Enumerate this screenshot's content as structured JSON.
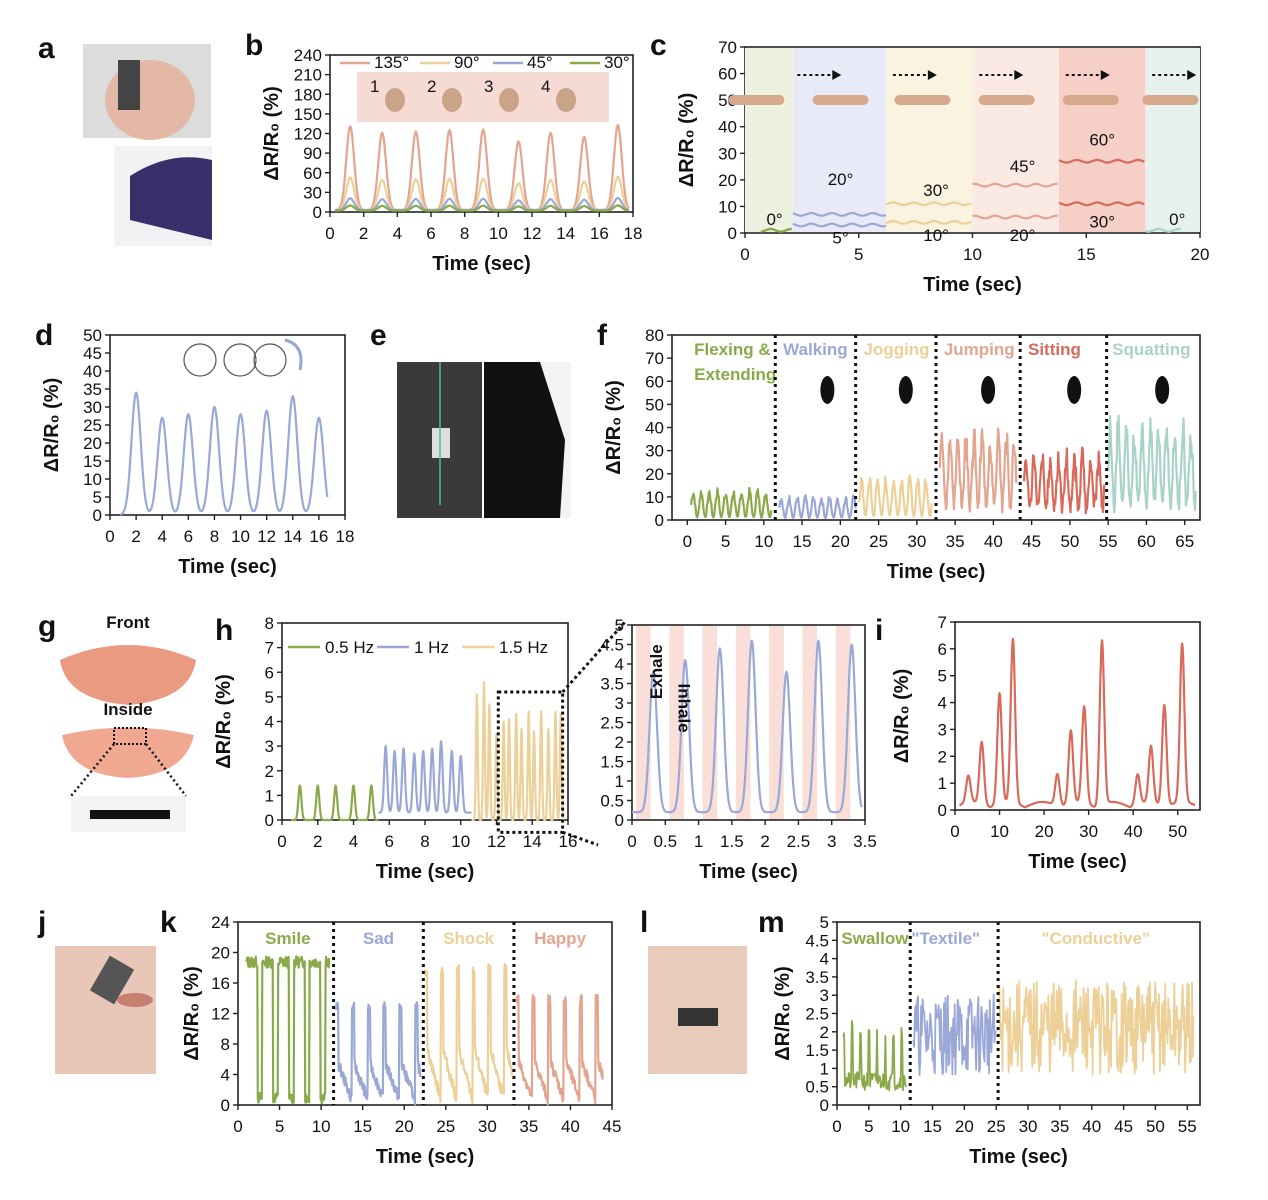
{
  "panels": {
    "a": "a",
    "b": "b",
    "c": "c",
    "d": "d",
    "e": "e",
    "f": "f",
    "g": "g",
    "h": "h",
    "i": "i",
    "j": "j",
    "k": "k",
    "l": "l",
    "m": "m"
  },
  "labels": {
    "ylabel": "ΔR/R₀ (%)",
    "xlabel": "Time (sec)",
    "front": "Front",
    "inside": "Inside"
  },
  "chart_data": [
    {
      "id": "b",
      "type": "line",
      "xlim": [
        0,
        18
      ],
      "ylim": [
        0,
        240
      ],
      "xticks": [
        "0",
        "2",
        "4",
        "6",
        "8",
        "10",
        "12",
        "14",
        "16",
        "18"
      ],
      "yticks": [
        "0",
        "30",
        "60",
        "90",
        "120",
        "150",
        "180",
        "210",
        "240"
      ],
      "series": [
        {
          "name": "135°",
          "color": "#e3a58f",
          "peak": 128
        },
        {
          "name": "90°",
          "color": "#ecd098",
          "peak": 50
        },
        {
          "name": "45°",
          "color": "#9aa8d8",
          "peak": 18
        },
        {
          "name": "30°",
          "color": "#8aaa4a",
          "peak": 8
        }
      ],
      "peaks_x": [
        1.2,
        3.1,
        5.1,
        7.1,
        9.1,
        11.2,
        13.1,
        15.1,
        17.1
      ],
      "peaks_y": [
        128,
        118,
        120,
        122,
        123,
        105,
        118,
        112,
        130
      ],
      "inset_labels": [
        "1",
        "2",
        "3",
        "4"
      ]
    },
    {
      "id": "c",
      "type": "line",
      "xlim": [
        0,
        20
      ],
      "ylim": [
        0,
        70
      ],
      "xticks": [
        "0",
        "5",
        "10",
        "15",
        "20"
      ],
      "yticks": [
        "0",
        "10",
        "20",
        "30",
        "40",
        "50",
        "60",
        "70"
      ],
      "segments": [
        {
          "x0": 0.7,
          "x1": 2.1,
          "upper": 1,
          "lower": 1
        },
        {
          "x0": 2.1,
          "x1": 6.2,
          "upper": 7,
          "lower": 3
        },
        {
          "x0": 6.2,
          "x1": 10,
          "upper": 11,
          "lower": 4
        },
        {
          "x0": 10,
          "x1": 13.8,
          "upper": 18,
          "lower": 6
        },
        {
          "x0": 13.8,
          "x1": 17.6,
          "upper": 27,
          "lower": 11
        },
        {
          "x0": 17.6,
          "x1": 19.2,
          "upper": 1,
          "lower": 1
        }
      ],
      "annotations": [
        "0°",
        "20°",
        "5°",
        "30°",
        "10°",
        "45°",
        "20°",
        "60°",
        "30°",
        "0°"
      ]
    },
    {
      "id": "d",
      "type": "line",
      "xlim": [
        0,
        18
      ],
      "ylim": [
        0,
        50
      ],
      "xticks": [
        "0",
        "2",
        "4",
        "6",
        "8",
        "10",
        "12",
        "14",
        "16",
        "18"
      ],
      "yticks": [
        "0",
        "5",
        "10",
        "15",
        "20",
        "25",
        "30",
        "35",
        "40",
        "45",
        "50"
      ],
      "peaks_x": [
        2,
        4,
        6,
        8,
        10,
        12,
        14,
        16
      ],
      "peaks_y": [
        34,
        27,
        28,
        30,
        28,
        29,
        33,
        27
      ]
    },
    {
      "id": "f",
      "type": "line",
      "xlim": [
        -2,
        67
      ],
      "ylim": [
        0,
        80
      ],
      "xticks": [
        "0",
        "5",
        "10",
        "15",
        "20",
        "25",
        "30",
        "35",
        "40",
        "45",
        "50",
        "55",
        "60",
        "65"
      ],
      "yticks": [
        "0",
        "10",
        "20",
        "30",
        "40",
        "50",
        "60",
        "70",
        "80"
      ],
      "activities": [
        {
          "label": "Flexing & Extending",
          "color": "#8aaa4a",
          "x0": 0.5,
          "x1": 11,
          "amp": 14
        },
        {
          "label": "Walking",
          "color": "#9aa8d8",
          "x0": 12,
          "x1": 22,
          "amp": 11
        },
        {
          "label": "Jogging",
          "color": "#ecd098",
          "x0": 22.5,
          "x1": 32,
          "amp": 20
        },
        {
          "label": "Jumping",
          "color": "#e3a58f",
          "x0": 33,
          "x1": 43,
          "amp": 38
        },
        {
          "label": "Sitting",
          "color": "#d76a5a",
          "x0": 44,
          "x1": 54.5,
          "amp": 27
        },
        {
          "label": "Squatting",
          "color": "#a9d2c9",
          "x0": 55,
          "x1": 66.5,
          "amp": 42
        }
      ],
      "dividers": [
        11.5,
        22,
        32.5,
        43.5,
        54.8
      ]
    },
    {
      "id": "h",
      "type": "line",
      "xlim": [
        0,
        16
      ],
      "ylim": [
        0,
        8
      ],
      "xticks": [
        "0",
        "2",
        "4",
        "6",
        "8",
        "10",
        "12",
        "14",
        "16"
      ],
      "yticks": [
        "0",
        "1",
        "2",
        "3",
        "4",
        "5",
        "6",
        "7",
        "8"
      ],
      "series": [
        {
          "name": "0.5 Hz",
          "color": "#8aaa4a"
        },
        {
          "name": "1 Hz",
          "color": "#9aa8d8"
        },
        {
          "name": "1.5 Hz",
          "color": "#ecd098"
        }
      ]
    },
    {
      "id": "h2",
      "type": "line",
      "xlim": [
        0,
        3.5
      ],
      "ylim": [
        0,
        5
      ],
      "xticks": [
        "0",
        "0.5",
        "1",
        "1.5",
        "2",
        "2.5",
        "3",
        "3.5"
      ],
      "yticks": [
        "0",
        "0.5",
        "1",
        "1.5",
        "2",
        "2.5",
        "3",
        "3.5",
        "4",
        "4.5",
        "5"
      ],
      "peaks_x": [
        0.32,
        0.8,
        1.32,
        1.8,
        2.32,
        2.8,
        3.3
      ],
      "peaks_y": [
        3.6,
        3.9,
        4.2,
        4.4,
        3.6,
        4.4,
        4.3
      ],
      "annotations": [
        "Exhale",
        "Inhale"
      ]
    },
    {
      "id": "i",
      "type": "line",
      "xlim": [
        0,
        55
      ],
      "ylim": [
        0,
        7
      ],
      "xticks": [
        "0",
        "10",
        "20",
        "30",
        "40",
        "50"
      ],
      "yticks": [
        "0",
        "1",
        "2",
        "3",
        "4",
        "5",
        "6",
        "7"
      ],
      "peaks_x": [
        3,
        6,
        10,
        13,
        23,
        26,
        29,
        33,
        41,
        44,
        47,
        51
      ],
      "peaks_y": [
        1.0,
        2.3,
        4.1,
        6.1,
        1.2,
        2.7,
        3.6,
        6.1,
        1.1,
        2.1,
        3.8,
        5.9
      ]
    },
    {
      "id": "k",
      "type": "line",
      "xlim": [
        0,
        45
      ],
      "ylim": [
        0,
        24
      ],
      "xticks": [
        "0",
        "5",
        "10",
        "15",
        "20",
        "25",
        "30",
        "35",
        "40",
        "45"
      ],
      "yticks": [
        "0",
        "4",
        "8",
        "12",
        "16",
        "20",
        "24"
      ],
      "activities": [
        {
          "label": "Smile",
          "color": "#8aaa4a",
          "x0": 1,
          "x1": 11,
          "amp": 18
        },
        {
          "label": "Sad",
          "color": "#9aa8d8",
          "x0": 11.8,
          "x1": 22,
          "amp": 12
        },
        {
          "label": "Shock",
          "color": "#ecd098",
          "x0": 22.5,
          "x1": 33,
          "amp": 17
        },
        {
          "label": "Happy",
          "color": "#e3a58f",
          "x0": 33.5,
          "x1": 44,
          "amp": 13
        }
      ],
      "dividers": [
        11.5,
        22.3,
        33.2
      ]
    },
    {
      "id": "m",
      "type": "line",
      "xlim": [
        0,
        57
      ],
      "ylim": [
        0,
        5
      ],
      "xticks": [
        "0",
        "5",
        "10",
        "15",
        "20",
        "25",
        "30",
        "35",
        "40",
        "45",
        "50",
        "55"
      ],
      "yticks": [
        "0",
        "0.5",
        "1",
        "1.5",
        "2",
        "2.5",
        "3",
        "3.5",
        "4",
        "4.5",
        "5"
      ],
      "activities": [
        {
          "label": "Swallow",
          "color": "#8aaa4a",
          "x0": 1,
          "x1": 11,
          "amp": 2.3
        },
        {
          "label": "\"Textile\"",
          "color": "#9aa8d8",
          "x0": 12,
          "x1": 25,
          "amp": 3.0
        },
        {
          "label": "\"Conductive\"",
          "color": "#ecd098",
          "x0": 25.5,
          "x1": 56,
          "amp": 3.5
        }
      ],
      "dividers": [
        11.5,
        25.3
      ]
    }
  ]
}
